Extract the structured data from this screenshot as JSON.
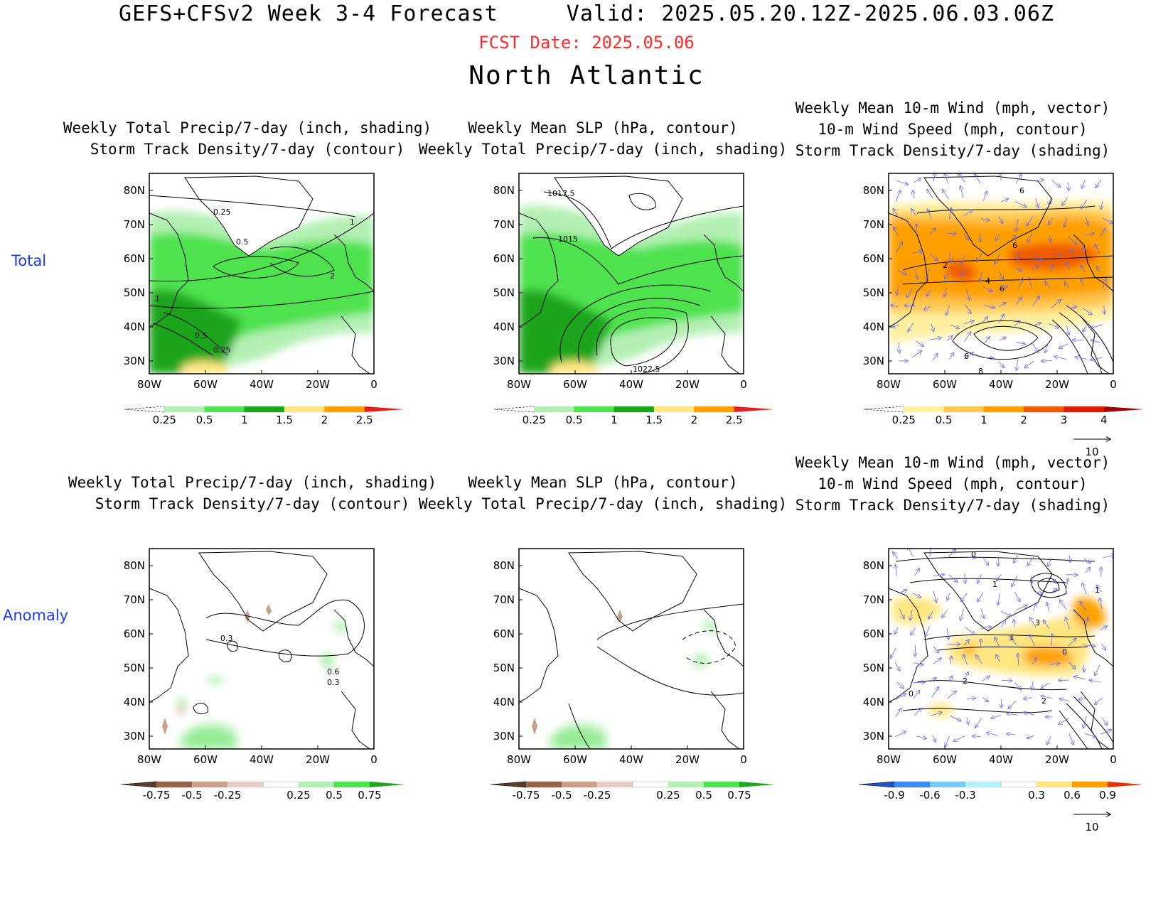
{
  "header": {
    "model_title": "GEFS+CFSv2 Week 3-4 Forecast",
    "valid": "Valid: 2025.05.20.12Z-2025.06.03.06Z",
    "fcst_date": "FCST Date: 2025.05.06",
    "region": "North Atlantic"
  },
  "rows": {
    "total_label": "Total",
    "anomaly_label": "Anomaly"
  },
  "panel_titles": {
    "precip_std": [
      "Weekly Total Precip/7-day (inch, shading)",
      "Storm Track Density/7-day (contour)"
    ],
    "slp_precip": [
      "Weekly Mean SLP (hPa, contour)",
      "Weekly Total Precip/7-day (inch, shading)"
    ],
    "wind_std": [
      "Weekly Mean 10-m Wind (mph, vector)",
      "10-m Wind Speed (mph, contour)",
      "Storm Track Density/7-day (shading)"
    ]
  },
  "axes": {
    "lat_ticks": [
      "80N",
      "70N",
      "60N",
      "50N",
      "40N",
      "30N"
    ],
    "lon_ticks": [
      "80W",
      "60W",
      "40W",
      "20W",
      "0"
    ]
  },
  "colorbars": {
    "precip_total": {
      "labels": [
        "0.25",
        "0.5",
        "1",
        "1.5",
        "2",
        "2.5"
      ],
      "colors": [
        "#ffffff",
        "#b4f0b4",
        "#50e250",
        "#1ea51e",
        "#ffe680",
        "#ffa000",
        "#e61e1e"
      ]
    },
    "std_total": {
      "labels": [
        "0.25",
        "0.5",
        "1",
        "2",
        "3",
        "4"
      ],
      "colors": [
        "#ffffff",
        "#fff0a0",
        "#ffc850",
        "#ffa000",
        "#f05a00",
        "#dc1e00",
        "#a00000"
      ]
    },
    "precip_anom": {
      "labels": [
        "-0.75",
        "-0.5",
        "-0.25",
        "0.25",
        "0.5",
        "0.75"
      ],
      "colors": [
        "#5a3c28",
        "#96644b",
        "#c8a08c",
        "#e6cdc3",
        "#ffffff",
        "#b4f0b4",
        "#50e250",
        "#1ea51e"
      ]
    },
    "std_anom": {
      "labels": [
        "-0.9",
        "-0.6",
        "-0.3",
        "0.3",
        "0.6",
        "0.9"
      ],
      "colors": [
        "#1e50d2",
        "#3c8cf0",
        "#78c8f5",
        "#b4f0ff",
        "#ffffff",
        "#ffe680",
        "#ffa000",
        "#e63200"
      ]
    }
  },
  "vector_scale": {
    "label": "10"
  },
  "contour_labels": {
    "total_precip": [
      "0.25",
      "1",
      "0.5",
      "2",
      "1",
      "0.5",
      "0.25"
    ],
    "total_slp": [
      "1017.5",
      "1015",
      "1022.5"
    ],
    "total_wind": [
      "6",
      "6",
      "2",
      "4",
      "6",
      "6",
      "8"
    ],
    "anom_precip": [
      "0.3",
      "0.6",
      "0.3"
    ],
    "anom_wind": [
      "0",
      "1",
      "1",
      "3",
      "1",
      "0",
      "2",
      "2",
      "0"
    ]
  }
}
